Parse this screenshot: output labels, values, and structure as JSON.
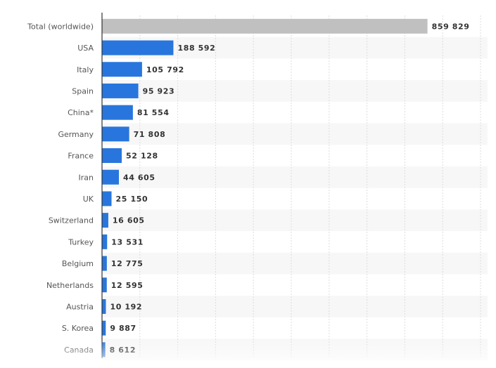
{
  "chart_data": {
    "type": "bar",
    "orientation": "horizontal",
    "title": "",
    "xlabel": "",
    "ylabel": "",
    "xlim": [
      0,
      1000000
    ],
    "grid": true,
    "categories": [
      "Total (worldwide)",
      "USA",
      "Italy",
      "Spain",
      "China*",
      "Germany",
      "France",
      "Iran",
      "UK",
      "Switzerland",
      "Turkey",
      "Belgium",
      "Netherlands",
      "Austria",
      "S. Korea",
      "Canada"
    ],
    "values": [
      859829,
      188592,
      105792,
      95923,
      81554,
      71808,
      52128,
      44605,
      25150,
      16605,
      13531,
      12775,
      12595,
      10192,
      9887,
      8612
    ],
    "value_labels": [
      "859 829",
      "188 592",
      "105 792",
      "95 923",
      "81 554",
      "71 808",
      "52 128",
      "44 605",
      "25 150",
      "16 605",
      "13 531",
      "12 775",
      "12 595",
      "10 192",
      "9 887",
      "8 612"
    ],
    "bar_colors": [
      "#c0c0c0",
      "#2876dd",
      "#2876dd",
      "#2876dd",
      "#2876dd",
      "#2876dd",
      "#2876dd",
      "#2876dd",
      "#2876dd",
      "#2876dd",
      "#2876dd",
      "#2876dd",
      "#2876dd",
      "#2876dd",
      "#2876dd",
      "#2876dd"
    ],
    "fade_last_row": true
  }
}
